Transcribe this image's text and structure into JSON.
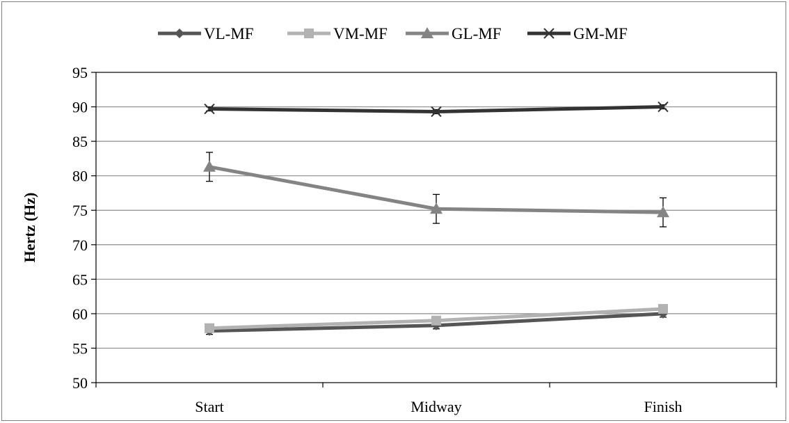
{
  "chart_data": {
    "type": "line",
    "title": "",
    "xlabel": "",
    "ylabel": "Hertz (Hz)",
    "categories": [
      "Start",
      "Midway",
      "Finish"
    ],
    "ylim": [
      50,
      95
    ],
    "yticks": [
      50,
      55,
      60,
      65,
      70,
      75,
      80,
      85,
      90,
      95
    ],
    "grid": true,
    "legend_position": "top",
    "series": [
      {
        "name": "VL-MF",
        "values": [
          57.5,
          58.3,
          60.0
        ],
        "error": [
          0.5,
          0.5,
          0.5
        ],
        "color": "#555555",
        "marker": "diamond"
      },
      {
        "name": "VM-MF",
        "values": [
          57.9,
          59.0,
          60.7
        ],
        "error": [
          0.4,
          0.4,
          0.4
        ],
        "color": "#b2b2b2",
        "marker": "square"
      },
      {
        "name": "GL-MF",
        "values": [
          81.3,
          75.2,
          74.7
        ],
        "error": [
          2.1,
          2.1,
          2.1
        ],
        "color": "#848484",
        "marker": "triangle"
      },
      {
        "name": "GM-MF",
        "values": [
          89.7,
          89.3,
          90.0
        ],
        "error": [
          0.3,
          0.3,
          0.3
        ],
        "color": "#333333",
        "marker": "x"
      }
    ]
  }
}
